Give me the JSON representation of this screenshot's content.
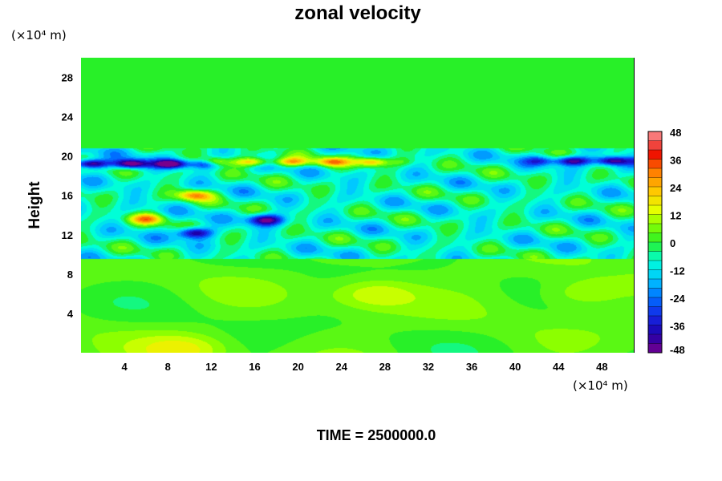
{
  "chart_data": {
    "type": "heatmap",
    "title": "zonal velocity",
    "ylabel": "Height",
    "x_unit": "(×10⁴ m)",
    "y_unit": "(×10⁴ m)",
    "xlim": [
      0,
      51
    ],
    "ylim": [
      0,
      30
    ],
    "x_ticks": [
      4,
      8,
      12,
      16,
      20,
      24,
      28,
      32,
      36,
      40,
      44,
      48
    ],
    "y_ticks": [
      4,
      8,
      12,
      16,
      20,
      24,
      28
    ],
    "colorbar": {
      "min": -48,
      "max": 48,
      "step": 4,
      "tick_labels": [
        48,
        36,
        24,
        12,
        0,
        -12,
        -24,
        -36,
        -48
      ]
    },
    "field_features": [
      {
        "kind": "jet",
        "y": 19.2,
        "x_from": 0,
        "x_to": 10,
        "value": -46
      },
      {
        "kind": "jet",
        "y": 19.5,
        "x_from": 44,
        "x_to": 51,
        "value": -38
      },
      {
        "kind": "jet",
        "y": 19.4,
        "x_from": 13,
        "x_to": 27,
        "value": 32
      },
      {
        "kind": "blob",
        "x": 17,
        "y": 13.5,
        "value": -40
      },
      {
        "kind": "blob",
        "x": 10.5,
        "y": 12.2,
        "value": -42
      },
      {
        "kind": "blob",
        "x": 10.5,
        "y": 16,
        "value": 34
      },
      {
        "kind": "blob",
        "x": 6,
        "y": 13.6,
        "value": 30
      },
      {
        "kind": "blob",
        "x": 27,
        "y": 6,
        "value": 12
      },
      {
        "kind": "blob",
        "x": 46,
        "y": 6,
        "value": 10
      },
      {
        "kind": "blob",
        "x": 9.5,
        "y": 0.3,
        "value": 12
      }
    ],
    "time_label": "TIME = 2500000.0",
    "grid": false
  }
}
